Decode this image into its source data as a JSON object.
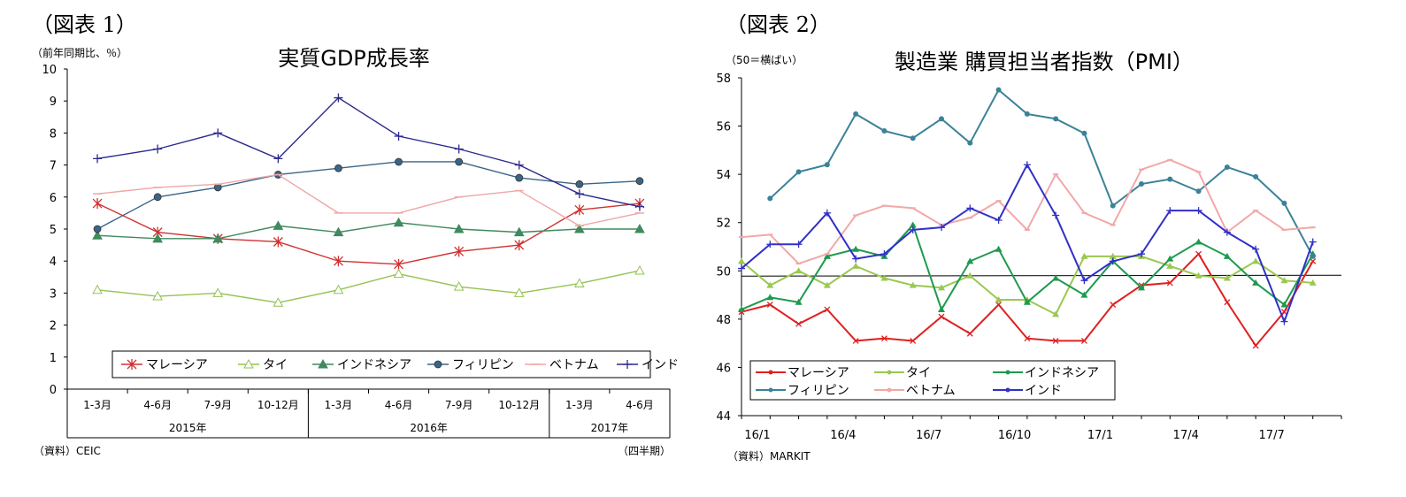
{
  "figure1": {
    "label": "（図表 1）",
    "unit": "（前年同期比、％）",
    "source": "（資料）CEIC",
    "period_note": "（四半期）",
    "chart_data": {
      "type": "line",
      "title": "実質GDP成長率",
      "ylim": [
        0,
        10
      ],
      "y_ticks": [
        "0",
        "1",
        "2",
        "3",
        "4",
        "5",
        "6",
        "7",
        "8",
        "9",
        "10"
      ],
      "categories": [
        "1-3月",
        "4-6月",
        "7-9月",
        "10-12月",
        "1-3月",
        "4-6月",
        "7-9月",
        "10-12月",
        "1-3月",
        "4-6月"
      ],
      "years": [
        {
          "label": "2015年",
          "from": 0,
          "to": 3
        },
        {
          "label": "2016年",
          "from": 4,
          "to": 7
        },
        {
          "label": "2017年",
          "from": 8,
          "to": 9
        }
      ],
      "legend_position": "bottom",
      "series": [
        {
          "name": "マレーシア",
          "color": "#d03030",
          "marker": "star",
          "values": [
            5.8,
            4.9,
            4.7,
            4.6,
            4.0,
            3.9,
            4.3,
            4.5,
            5.6,
            5.8
          ]
        },
        {
          "name": "タイ",
          "color": "#92c351",
          "marker": "triangle-open",
          "values": [
            3.1,
            2.9,
            3.0,
            2.7,
            3.1,
            3.6,
            3.2,
            3.0,
            3.3,
            3.7
          ]
        },
        {
          "name": "インドネシア",
          "color": "#3f8a5e",
          "marker": "triangle",
          "values": [
            4.8,
            4.7,
            4.7,
            5.1,
            4.9,
            5.2,
            5.0,
            4.9,
            5.0,
            5.0
          ]
        },
        {
          "name": "フィリピン",
          "color": "#3a6587",
          "marker": "circle",
          "values": [
            5.0,
            6.0,
            6.3,
            6.7,
            6.9,
            7.1,
            7.1,
            6.6,
            6.4,
            6.5
          ]
        },
        {
          "name": "ベトナム",
          "color": "#f0a6a6",
          "marker": "dash",
          "values": [
            6.1,
            6.3,
            6.4,
            6.7,
            5.5,
            5.5,
            6.0,
            6.2,
            5.1,
            5.5
          ]
        },
        {
          "name": "インド",
          "color": "#2c2a8e",
          "marker": "plus",
          "values": [
            7.2,
            7.5,
            8.0,
            7.2,
            9.1,
            7.9,
            7.5,
            7.0,
            6.1,
            5.7
          ]
        }
      ]
    }
  },
  "figure2": {
    "label": "（図表 2）",
    "unit": "（50＝横ばい）",
    "source": "（資料）MARKIT",
    "chart_data": {
      "type": "line",
      "title": "製造業 購買担当者指数（PMI）",
      "ylim": [
        44,
        58
      ],
      "y_ticks": [
        "44",
        "46",
        "48",
        "50",
        "52",
        "54",
        "56",
        "58"
      ],
      "x_labels": [
        {
          "label": "16/1",
          "index": 0
        },
        {
          "label": "16/4",
          "index": 3
        },
        {
          "label": "16/7",
          "index": 6
        },
        {
          "label": "16/10",
          "index": 9
        },
        {
          "label": "17/1",
          "index": 12
        },
        {
          "label": "17/4",
          "index": 15
        },
        {
          "label": "17/7",
          "index": 18
        }
      ],
      "reference_line": 49.8,
      "legend_position": "bottom-left",
      "series": [
        {
          "name": "マレーシア",
          "color": "#e02020",
          "values": [
            48.3,
            48.6,
            47.8,
            48.4,
            47.1,
            47.2,
            47.1,
            48.1,
            47.4,
            48.6,
            47.2,
            47.1,
            47.1,
            48.6,
            49.4,
            49.5,
            50.7,
            48.7,
            46.9,
            48.3,
            50.4
          ]
        },
        {
          "name": "タイ",
          "color": "#9ac850",
          "values": [
            50.4,
            49.4,
            50.0,
            49.4,
            50.2,
            49.7,
            49.4,
            49.3,
            49.8,
            48.8,
            48.8,
            48.2,
            50.6,
            50.6,
            50.6,
            50.2,
            49.8,
            49.7,
            50.4,
            49.6,
            49.5
          ]
        },
        {
          "name": "インドネシア",
          "color": "#1e9a4e",
          "values": [
            48.4,
            48.9,
            48.7,
            50.6,
            50.9,
            50.6,
            51.9,
            48.4,
            50.4,
            50.9,
            48.7,
            49.7,
            49.0,
            50.4,
            49.3,
            50.5,
            51.2,
            50.6,
            49.5,
            48.6,
            50.7
          ]
        },
        {
          "name": "フィリピン",
          "color": "#3b8299",
          "values": [
            null,
            53.0,
            54.1,
            54.4,
            56.5,
            55.8,
            55.5,
            56.3,
            55.3,
            57.5,
            56.5,
            56.3,
            55.7,
            52.7,
            53.6,
            53.8,
            53.3,
            54.3,
            53.9,
            52.8,
            50.6
          ]
        },
        {
          "name": "ベトナム",
          "color": "#f2a8a8",
          "values": [
            51.4,
            51.5,
            50.3,
            50.7,
            52.3,
            52.7,
            52.6,
            51.9,
            52.2,
            52.9,
            51.7,
            54.0,
            52.4,
            51.9,
            54.2,
            54.6,
            54.1,
            51.6,
            52.5,
            51.7,
            51.8
          ]
        },
        {
          "name": "インド",
          "color": "#3030c8",
          "values": [
            50.1,
            51.1,
            51.1,
            52.4,
            50.5,
            50.7,
            51.7,
            51.8,
            52.6,
            52.1,
            54.4,
            52.3,
            49.6,
            50.4,
            50.7,
            52.5,
            52.5,
            51.6,
            50.9,
            47.9,
            51.2
          ]
        }
      ]
    }
  }
}
